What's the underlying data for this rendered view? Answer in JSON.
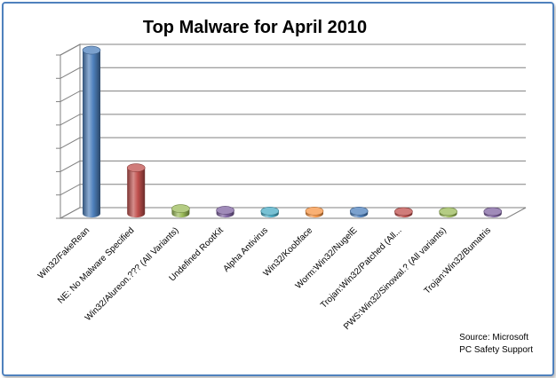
{
  "chart_data": {
    "type": "bar",
    "title": "Top Malware for April 2010",
    "categories": [
      "Win32/FakeRean",
      "NE: No Malware Specified",
      "Win32/Alureon.??? (All Variants)",
      "Undefined RootKit",
      "Alpha Antivirus",
      "Win32/Koobface",
      "Worm:Win32/NugelE",
      "Trojan:Win32/Patched (All...",
      "PWS:Win32/Sinowal.? (All variants)",
      "Trojan:Win32/Bumatris"
    ],
    "values": [
      100,
      28,
      3,
      2,
      1.5,
      1.5,
      1.5,
      1.2,
      1.2,
      1.2
    ],
    "bar_colors": [
      "#4f81bd",
      "#c0504d",
      "#9bbb59",
      "#8064a2",
      "#4bacc6",
      "#f79646",
      "#4f81bd",
      "#c0504d",
      "#9bbb59",
      "#8064a2"
    ],
    "ylim": [
      0,
      100
    ],
    "y_grid_lines": 7,
    "ytick_labels_visible": false,
    "grid": true,
    "legend": "none",
    "xlabel": "",
    "ylabel": ""
  },
  "source": {
    "line1": "Source: Microsoft",
    "line2": "PC Safety Support"
  }
}
